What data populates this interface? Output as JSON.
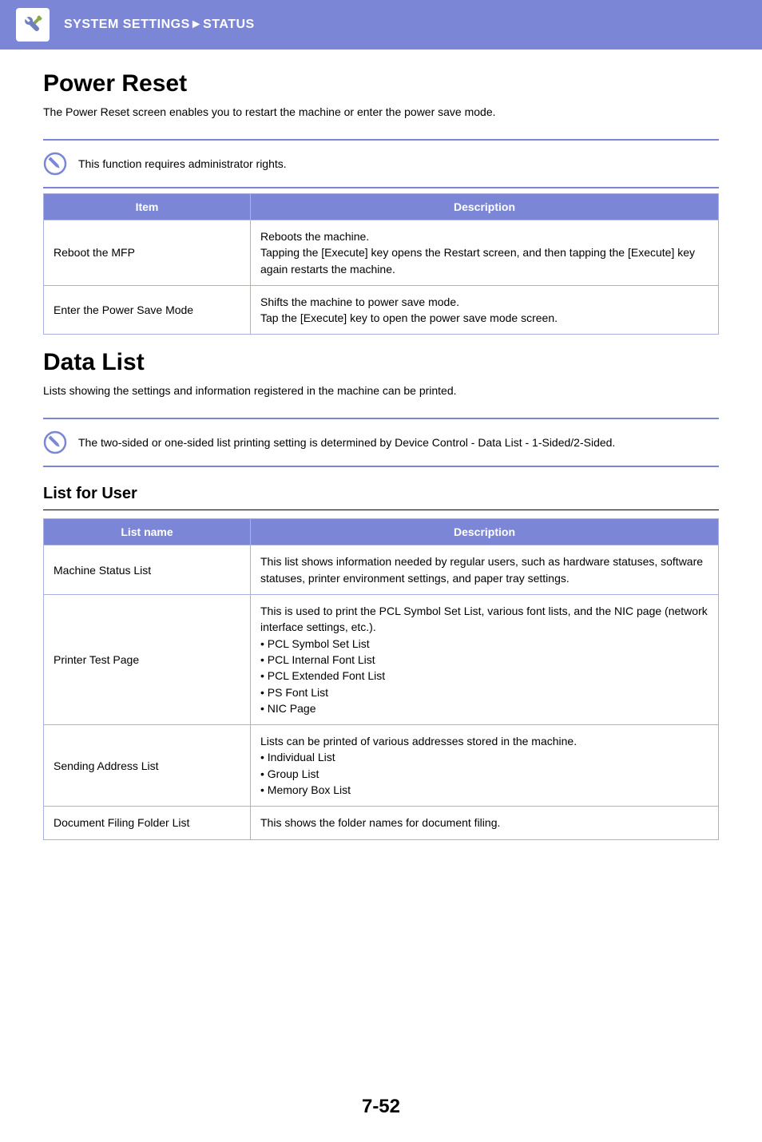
{
  "header": {
    "breadcrumb_section": "SYSTEM SETTINGS",
    "breadcrumb_sep": "►",
    "breadcrumb_page": "STATUS",
    "icon_colors": {
      "box_bg": "#ffffff",
      "wrench": "#6f7fbf",
      "driver": "#8aa84a"
    }
  },
  "power_reset": {
    "title": "Power Reset",
    "intro": "The Power Reset screen enables you to restart the machine or enter the power save mode.",
    "note": "This function requires administrator rights.",
    "header_bg": "#7b87d6",
    "th_item": "Item",
    "th_desc": "Description",
    "rows": [
      {
        "item": "Reboot the MFP",
        "desc": "Reboots the machine.\nTapping the [Execute] key opens the Restart screen, and then tapping the [Execute] key again restarts the machine."
      },
      {
        "item": "Enter the Power Save Mode",
        "desc": "Shifts the machine to power save mode.\nTap the [Execute] key to open the power save mode screen."
      }
    ]
  },
  "data_list": {
    "title": "Data List",
    "intro": "Lists showing the settings and information registered in the machine can be printed.",
    "note": "The two-sided or one-sided list printing setting is determined by Device Control - Data List - 1-Sided/2-Sided.",
    "subheading": "List for User",
    "th_name": "List name",
    "th_desc": "Description",
    "rows": [
      {
        "name": "Machine Status List",
        "desc": "This list shows information needed by regular users, such as hardware statuses, software statuses, printer environment settings, and paper tray settings."
      },
      {
        "name": "Printer Test Page",
        "desc_lead": "This is used to print the PCL Symbol Set List, various font lists, and the NIC page (network interface settings, etc.).",
        "bullets": [
          "PCL Symbol Set List",
          "PCL Internal Font List",
          "PCL Extended Font List",
          "PS Font List",
          "NIC Page"
        ]
      },
      {
        "name": "Sending Address List",
        "desc_lead": "Lists can be printed of various addresses stored in the machine.",
        "bullets": [
          "Individual List",
          "Group List",
          "Memory Box List"
        ]
      },
      {
        "name": "Document Filing Folder List",
        "desc": "This shows the folder names for document filing."
      }
    ]
  },
  "page_number": "7-52",
  "note_icon_colors": {
    "ring": "#7b87d6",
    "pencil": "#7b87d6"
  }
}
